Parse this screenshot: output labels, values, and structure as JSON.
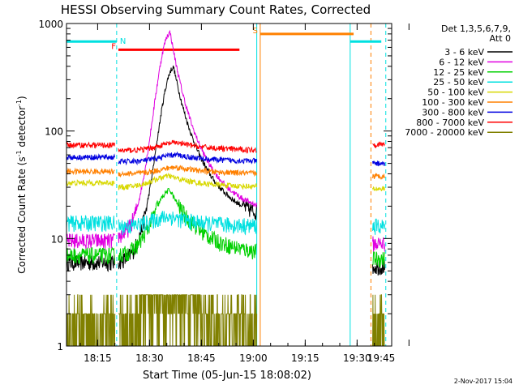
{
  "chart_data": {
    "type": "line",
    "title": "HESSI Observing Summary Count Rates, Corrected",
    "xlabel": "Start Time (05-Jun-15 18:08:02)",
    "ylabel": "Corrected Count Rate (s",
    "ylabel_sup1": "-1",
    "ylabel_mid": " detector",
    "ylabel_sup2": "-1",
    "ylabel_end": ")",
    "y_scale": "log",
    "xlim_minutes": [
      6,
      100
    ],
    "ylim": [
      1,
      1000
    ],
    "x_ticks": [
      {
        "m": 15,
        "label": "18:15"
      },
      {
        "m": 30,
        "label": "18:30"
      },
      {
        "m": 45,
        "label": "18:45"
      },
      {
        "m": 60,
        "label": "19:00"
      },
      {
        "m": 75,
        "label": "19:15"
      },
      {
        "m": 90,
        "label": "19:30"
      },
      {
        "m": 105,
        "label": "19:45"
      }
    ],
    "y_ticks": [
      {
        "v": 1,
        "label": "1"
      },
      {
        "v": 10,
        "label": "10"
      },
      {
        "v": 100,
        "label": "100"
      },
      {
        "v": 1000,
        "label": "1000"
      }
    ],
    "legend_header": [
      "Det 1,3,5,6,7,9,",
      "Att 0"
    ],
    "series": [
      {
        "name": "3 - 6 keV",
        "color": "#000000",
        "pre": 6,
        "post": 5.5,
        "base": 6,
        "peak": 390,
        "peak_m": 37
      },
      {
        "name": "6 - 12 keV",
        "color": "#e000e0",
        "pre": 9.5,
        "post": 9,
        "base": 10,
        "peak": 820,
        "peak_m": 36
      },
      {
        "name": "12 - 25 keV",
        "color": "#00d000",
        "pre": 7,
        "post": 6.5,
        "base": 7,
        "peak": 28,
        "peak_m": 36
      },
      {
        "name": "25 - 50 keV",
        "color": "#00e0e0",
        "pre": 14,
        "post": 13,
        "base": 13,
        "peak": 16,
        "peak_m": 36
      },
      {
        "name": "50 - 100 keV",
        "color": "#d8d800",
        "pre": 33,
        "post": 29,
        "base": 30,
        "peak": 38,
        "peak_m": 36
      },
      {
        "name": "100 - 300 keV",
        "color": "#ff8000",
        "pre": 42,
        "post": 38,
        "base": 40,
        "peak": 46,
        "peak_m": 38
      },
      {
        "name": "300 - 800 keV",
        "color": "#0000e0",
        "pre": 57,
        "post": 50,
        "base": 52,
        "peak": 60,
        "peak_m": 38
      },
      {
        "name": "800 - 7000 keV",
        "color": "#ff0000",
        "pre": 74,
        "post": 75,
        "base": 66,
        "peak": 78,
        "peak_m": 38
      },
      {
        "name": "7000 - 20000 keV",
        "color": "#808000",
        "pre": 1.5,
        "post": 2,
        "base": 2,
        "peak": 2.5,
        "peak_m": 36
      }
    ],
    "segments": {
      "pre": [
        6,
        20
      ],
      "main": [
        21,
        61
      ],
      "post": [
        94.5,
        98
      ]
    },
    "flags": [
      {
        "label": "N",
        "color": "#00e0e0",
        "start": 6,
        "end": 20.5,
        "y": 680,
        "vline_start": 20.5,
        "vline_end": null
      },
      {
        "label": "F",
        "color": "#ff0000",
        "start": 21,
        "end": 56,
        "y": 570
      },
      {
        "label": "S",
        "color": "#ff8000",
        "start": 62,
        "end": 89,
        "y": 800
      },
      {
        "label": "",
        "color": "#00e0e0",
        "start": 88,
        "end": 97,
        "y": 680
      }
    ],
    "vlines": [
      {
        "m": 20.5,
        "color": "#00e0e0",
        "dash": true
      },
      {
        "m": 61,
        "color": "#00e0e0",
        "dash": false
      },
      {
        "m": 62,
        "color": "#ff8000",
        "dash": false
      },
      {
        "m": 88,
        "color": "#00e0e0",
        "dash": false
      },
      {
        "m": 94,
        "color": "#ff8000",
        "dash": true
      },
      {
        "m": 98.3,
        "color": "#00e0e0",
        "dash": true
      }
    ],
    "footer_date": "2-Nov-2017 15:04"
  }
}
